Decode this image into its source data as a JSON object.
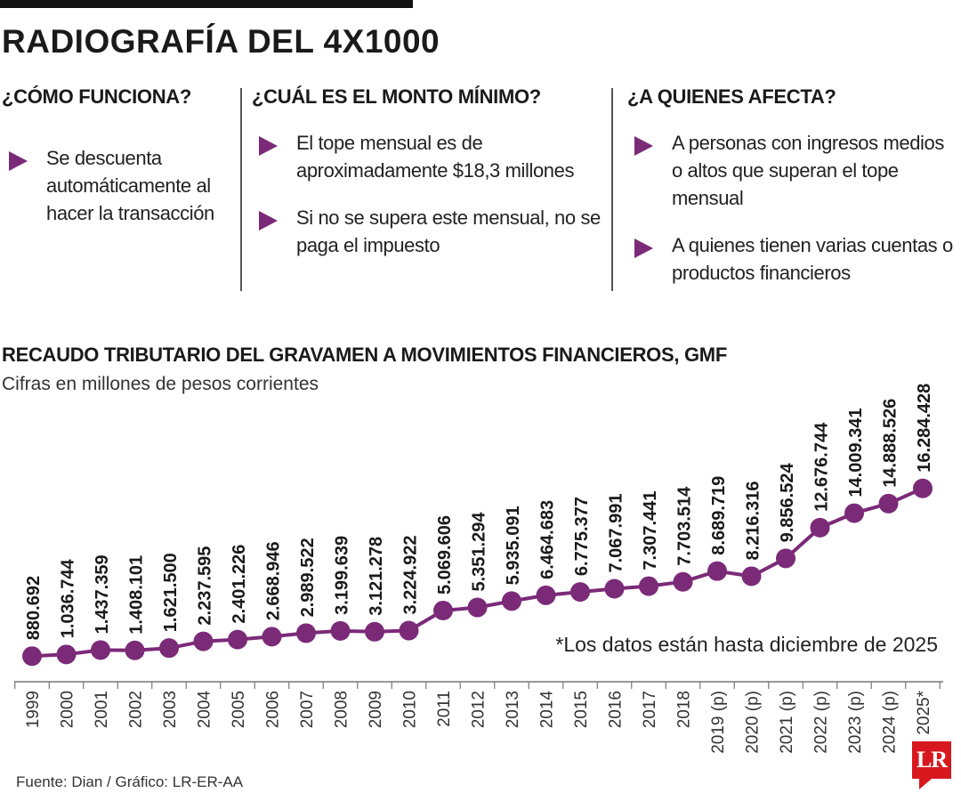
{
  "header": {
    "title": "RADIOGRAFÍA DEL 4X1000"
  },
  "columns": [
    {
      "title": "¿CÓMO FUNCIONA?",
      "items": [
        "Se descuenta automáticamente al hacer la transacción"
      ]
    },
    {
      "title": "¿CUÁL ES EL MONTO MÍNIMO?",
      "items": [
        "El tope mensual es de aproximadamente $18,3 millones",
        "Si no se supera este mensual, no se paga el impuesto"
      ]
    },
    {
      "title": "¿A QUIENES AFECTA?",
      "items": [
        "A personas con ingresos medios o altos que superan el tope mensual",
        "A quienes tienen varias cuentas o productos financieros"
      ]
    }
  ],
  "colors": {
    "accent": "#7b2a78",
    "logo": "#d7191f"
  },
  "chart_data": {
    "type": "line",
    "title": "RECAUDO TRIBUTARIO DEL GRAVAMEN A MOVIMIENTOS FINANCIEROS, GMF",
    "subtitle": "Cifras en millones de pesos corrientes",
    "categories": [
      "1999",
      "2000",
      "2001",
      "2002",
      "2003",
      "2004",
      "2005",
      "2006",
      "2007",
      "2008",
      "2009",
      "2010",
      "2011",
      "2012",
      "2013",
      "2014",
      "2015",
      "2016",
      "2017",
      "2018",
      "2019 (p)",
      "2020 (p)",
      "2021 (p)",
      "2022 (p)",
      "2023 (p)",
      "2024 (p)",
      "2025*"
    ],
    "values": [
      880692,
      1036744,
      1437359,
      1408101,
      1621500,
      2237595,
      2401226,
      2668946,
      2989522,
      3199639,
      3121278,
      3224922,
      5069606,
      5351294,
      5935091,
      6464683,
      6775377,
      7067991,
      7307441,
      7703514,
      8689719,
      8216316,
      9856524,
      12676744,
      14009341,
      14888526,
      16284428
    ],
    "labels": [
      "880.692",
      "1.036.744",
      "1.437.359",
      "1.408.101",
      "1.621.500",
      "2.237.595",
      "2.401.226",
      "2.668.946",
      "2.989.522",
      "3.199.639",
      "3.121.278",
      "3.224.922",
      "5.069.606",
      "5.351.294",
      "5.935.091",
      "6.464.683",
      "6.775.377",
      "7.067.991",
      "7.307.441",
      "7.703.514",
      "8.689.719",
      "8.216.316",
      "9.856.524",
      "12.676.744",
      "14.009.341",
      "14.888.526",
      "16.284.428"
    ],
    "xlabel": "",
    "ylabel": "",
    "ylim": [
      0,
      17000000
    ],
    "grid": false,
    "annotation": "*Los datos están hasta diciembre de 2025"
  },
  "footer": {
    "source": "Fuente: Dian / Gráfico: LR-ER-AA",
    "logo_text": "LR"
  }
}
